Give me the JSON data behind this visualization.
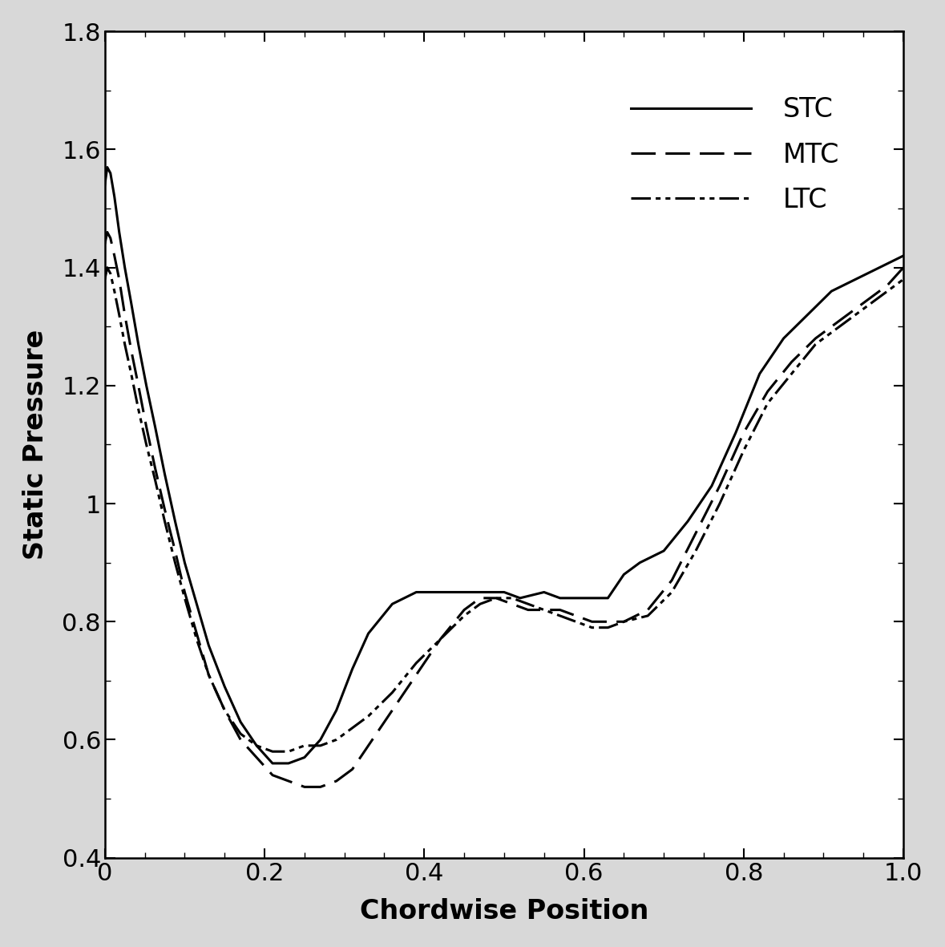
{
  "title": "",
  "xlabel": "Chordwise Position",
  "ylabel": "Static Pressure",
  "xlim": [
    0,
    1
  ],
  "ylim": [
    0.4,
    1.8
  ],
  "yticks": [
    0.4,
    0.6,
    0.8,
    1.0,
    1.2,
    1.4,
    1.6,
    1.8
  ],
  "xticks": [
    0,
    0.2,
    0.4,
    0.6,
    0.8,
    1.0
  ],
  "background_color": "#ffffff",
  "outer_background": "#d8d8d8",
  "legend_labels": [
    "STC",
    "MTC",
    "LTC"
  ],
  "STC_x": [
    0.0,
    0.003,
    0.007,
    0.012,
    0.018,
    0.025,
    0.033,
    0.042,
    0.052,
    0.063,
    0.075,
    0.088,
    0.1,
    0.115,
    0.13,
    0.15,
    0.17,
    0.19,
    0.21,
    0.23,
    0.25,
    0.27,
    0.29,
    0.31,
    0.33,
    0.36,
    0.39,
    0.42,
    0.45,
    0.48,
    0.5,
    0.52,
    0.55,
    0.57,
    0.59,
    0.61,
    0.63,
    0.65,
    0.67,
    0.7,
    0.73,
    0.76,
    0.79,
    0.82,
    0.85,
    0.88,
    0.91,
    0.94,
    0.97,
    1.0
  ],
  "STC_y": [
    1.54,
    1.57,
    1.56,
    1.52,
    1.46,
    1.4,
    1.34,
    1.27,
    1.2,
    1.13,
    1.05,
    0.97,
    0.9,
    0.83,
    0.76,
    0.69,
    0.63,
    0.59,
    0.56,
    0.56,
    0.57,
    0.6,
    0.65,
    0.72,
    0.78,
    0.83,
    0.85,
    0.85,
    0.85,
    0.85,
    0.85,
    0.84,
    0.85,
    0.84,
    0.84,
    0.84,
    0.84,
    0.88,
    0.9,
    0.92,
    0.97,
    1.03,
    1.12,
    1.22,
    1.28,
    1.32,
    1.36,
    1.38,
    1.4,
    1.42
  ],
  "MTC_x": [
    0.0,
    0.003,
    0.007,
    0.012,
    0.018,
    0.025,
    0.033,
    0.042,
    0.052,
    0.063,
    0.075,
    0.088,
    0.1,
    0.115,
    0.13,
    0.15,
    0.17,
    0.19,
    0.21,
    0.23,
    0.25,
    0.27,
    0.29,
    0.31,
    0.33,
    0.36,
    0.39,
    0.42,
    0.45,
    0.47,
    0.49,
    0.51,
    0.53,
    0.55,
    0.57,
    0.59,
    0.61,
    0.63,
    0.65,
    0.68,
    0.71,
    0.74,
    0.77,
    0.8,
    0.83,
    0.86,
    0.89,
    0.92,
    0.95,
    0.98,
    1.0
  ],
  "MTC_y": [
    1.44,
    1.46,
    1.45,
    1.42,
    1.38,
    1.32,
    1.26,
    1.2,
    1.13,
    1.06,
    0.99,
    0.92,
    0.85,
    0.78,
    0.71,
    0.65,
    0.6,
    0.57,
    0.54,
    0.53,
    0.52,
    0.52,
    0.53,
    0.55,
    0.59,
    0.65,
    0.71,
    0.77,
    0.82,
    0.84,
    0.84,
    0.83,
    0.82,
    0.82,
    0.82,
    0.81,
    0.8,
    0.8,
    0.8,
    0.82,
    0.87,
    0.95,
    1.03,
    1.12,
    1.19,
    1.24,
    1.28,
    1.31,
    1.34,
    1.37,
    1.4
  ],
  "LTC_x": [
    0.0,
    0.003,
    0.007,
    0.012,
    0.018,
    0.025,
    0.033,
    0.042,
    0.052,
    0.063,
    0.075,
    0.088,
    0.1,
    0.115,
    0.13,
    0.15,
    0.17,
    0.19,
    0.21,
    0.23,
    0.25,
    0.27,
    0.29,
    0.31,
    0.33,
    0.36,
    0.39,
    0.42,
    0.45,
    0.47,
    0.49,
    0.51,
    0.53,
    0.55,
    0.57,
    0.59,
    0.61,
    0.63,
    0.65,
    0.68,
    0.71,
    0.74,
    0.77,
    0.8,
    0.83,
    0.86,
    0.89,
    0.92,
    0.95,
    0.98,
    1.0
  ],
  "LTC_y": [
    1.38,
    1.4,
    1.39,
    1.36,
    1.32,
    1.27,
    1.22,
    1.16,
    1.1,
    1.04,
    0.97,
    0.9,
    0.84,
    0.77,
    0.71,
    0.65,
    0.61,
    0.59,
    0.58,
    0.58,
    0.59,
    0.59,
    0.6,
    0.62,
    0.64,
    0.68,
    0.73,
    0.77,
    0.81,
    0.83,
    0.84,
    0.84,
    0.83,
    0.82,
    0.81,
    0.8,
    0.79,
    0.79,
    0.8,
    0.81,
    0.85,
    0.92,
    1.0,
    1.09,
    1.17,
    1.22,
    1.27,
    1.3,
    1.33,
    1.36,
    1.38
  ],
  "line_color": "#000000",
  "line_width": 2.2,
  "font_size": 24,
  "tick_font_size": 22,
  "legend_font_size": 24
}
